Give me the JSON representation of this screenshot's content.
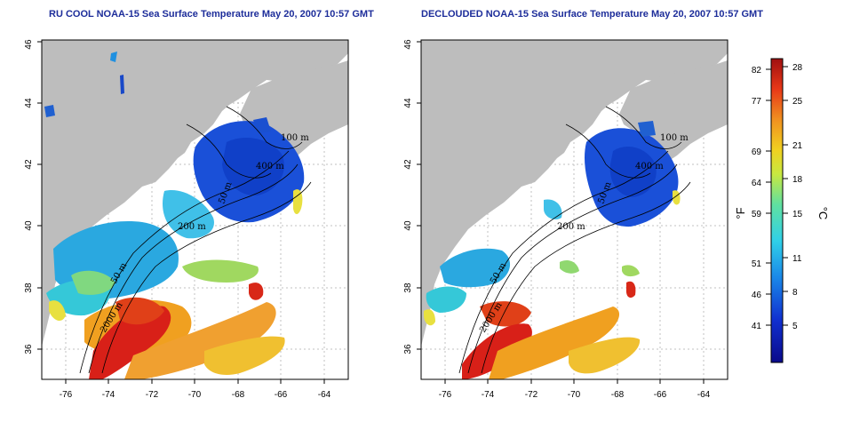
{
  "titles": {
    "left": "RU COOL NOAA-15 Sea Surface Temperature May 20, 2007 10:57 GMT",
    "right": "DECLOUDED NOAA-15 Sea Surface Temperature May 20, 2007 10:57 GMT"
  },
  "axes": {
    "lon_ticks": [
      "-76",
      "-74",
      "-72",
      "-70",
      "-68",
      "-66",
      "-64"
    ],
    "lat_ticks": [
      "36",
      "38",
      "40",
      "42",
      "44",
      "46"
    ]
  },
  "contour_labels": {
    "left": [
      "100 m",
      "400 m",
      "50 m",
      "200 m",
      "50 m",
      "2000 m"
    ],
    "right": [
      "100 m",
      "400 m",
      "50 m",
      "200 m",
      "50 m",
      "2000 m"
    ]
  },
  "colorbar": {
    "fahrenheit_ticks": [
      "82",
      "77",
      "69",
      "64",
      "59",
      "51",
      "46",
      "41"
    ],
    "celsius_ticks": [
      "28",
      "25",
      "21",
      "18",
      "15",
      "11",
      "8",
      "5"
    ],
    "fahrenheit_unit": "°F",
    "celsius_unit": "°C"
  },
  "colors": {
    "land": "#bdbdbd",
    "title": "#1d2d9a",
    "cold": "#1030c8",
    "cool": "#35c8e8",
    "mild": "#e8e030",
    "warm": "#f08020",
    "hot": "#d81818"
  }
}
